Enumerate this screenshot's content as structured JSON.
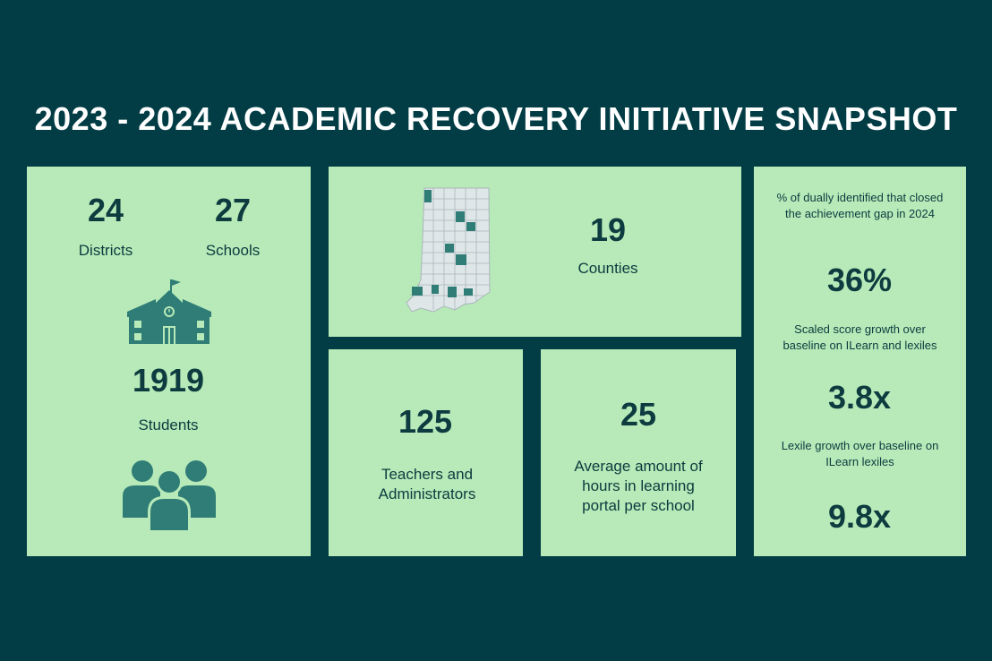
{
  "title": "2023 - 2024 ACADEMIC RECOVERY INITIATIVE SNAPSHOT",
  "colors": {
    "background": "#023d45",
    "card": "#b7eab8",
    "text": "#0d3b3f",
    "icon": "#2f7d76"
  },
  "left_card": {
    "districts": {
      "value": "24",
      "label": "Districts"
    },
    "schools": {
      "value": "27",
      "label": "Schools"
    },
    "school_icon": "school-building-icon",
    "students": {
      "value": "1919",
      "label": "Students"
    },
    "students_icon": "people-group-icon"
  },
  "counties_card": {
    "map_icon": "indiana-county-map-icon",
    "value": "19",
    "label": "Counties"
  },
  "teachers_card": {
    "value": "125",
    "label": "Teachers and Administrators"
  },
  "hours_card": {
    "value": "25",
    "label": "Average amount of hours in learning portal per school"
  },
  "right_card": {
    "gap_label": "% of dually identified that closed the achievement gap in 2024",
    "gap_value": "36%",
    "scaled_label": "Scaled score growth over baseline on ILearn and lexiles",
    "scaled_value": "3.8x",
    "lexile_label": "Lexile growth over baseline on ILearn lexiles",
    "lexile_value": "9.8x"
  }
}
